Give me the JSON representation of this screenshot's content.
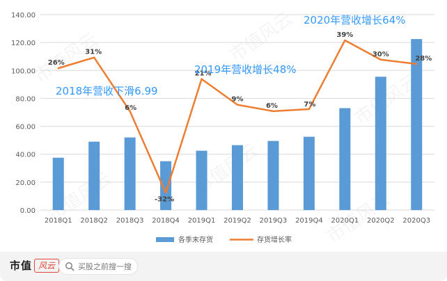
{
  "brand": {
    "name": "市值",
    "mark": "风云"
  },
  "search": {
    "placeholder": "买股之前搜一搜"
  },
  "watermark": "市值风云",
  "colors": {
    "bar": "#5b9bd5",
    "line": "#ed7d31",
    "note": "#3399ff",
    "grid": "#d9d9d9",
    "axis_text": "#595959",
    "label": "#404040"
  },
  "annotations": [
    {
      "text": "2018年营收下滑6.99"
    },
    {
      "text": "2019年营收增长48%"
    },
    {
      "text": "2020年营收增长64%"
    }
  ],
  "chart_data": {
    "type": "bar",
    "categories": [
      "2018Q1",
      "2018Q2",
      "2018Q3",
      "2018Q4",
      "2019Q1",
      "2019Q2",
      "2019Q3",
      "2019Q4",
      "2020Q1",
      "2020Q2",
      "2020Q3"
    ],
    "series": [
      {
        "name": "各季末存货",
        "type": "bar",
        "values": [
          37.5,
          49,
          52,
          35,
          42.5,
          46.5,
          49.5,
          52.5,
          73,
          95.5,
          122.5
        ]
      },
      {
        "name": "存货增长率",
        "type": "line",
        "values": [
          26,
          31,
          6,
          -32,
          21,
          9,
          6,
          7,
          39,
          30,
          28
        ],
        "labels": [
          "26%",
          "31%",
          "6%",
          "-32%",
          "21%",
          "9%",
          "6%",
          "7%",
          "39%",
          "30%",
          "28%"
        ]
      }
    ],
    "y_ticks": [
      "0.00",
      "20.00",
      "40.00",
      "60.00",
      "80.00",
      "100.00",
      "120.00",
      "140.00"
    ],
    "ylim": [
      0,
      140
    ],
    "grid": true,
    "legend_position": "bottom"
  }
}
